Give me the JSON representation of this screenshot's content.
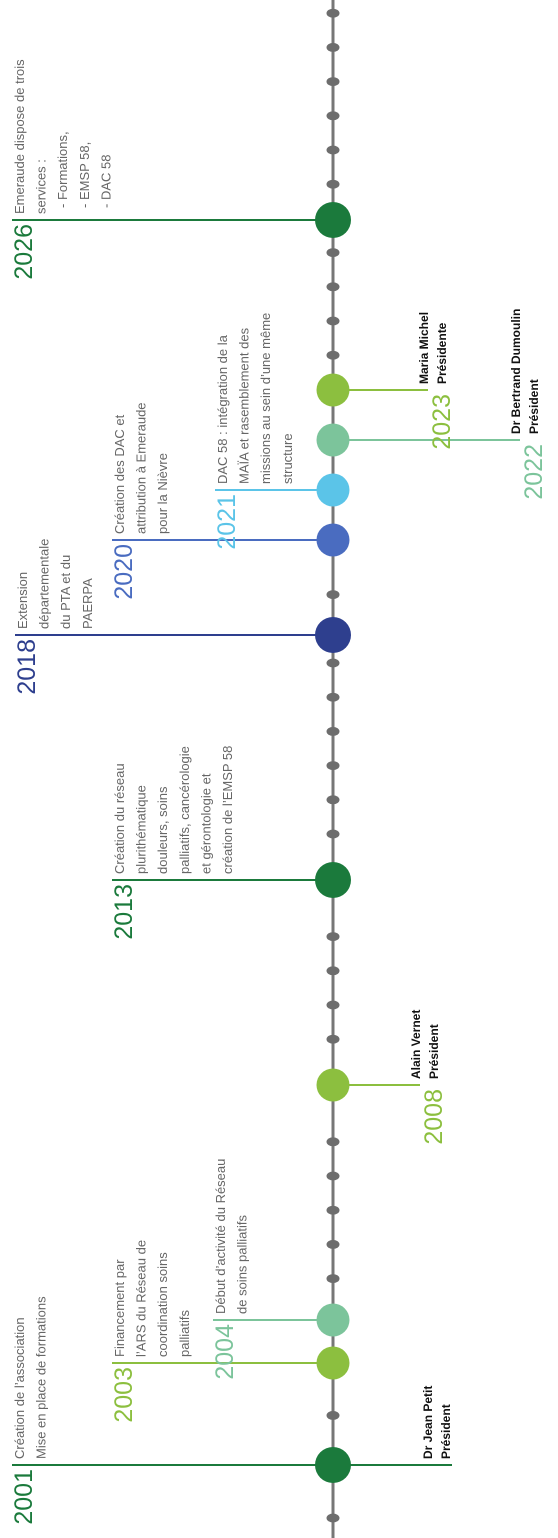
{
  "milestones": [
    {
      "year": "2001",
      "description": [
        "Création de l’association",
        "Mise en place de formations"
      ]
    },
    {
      "year": "2003",
      "description": [
        "Financement par",
        "l’ARS du Réseau de",
        "coordination soins",
        "palliatifs"
      ]
    },
    {
      "year": "2004",
      "description": [
        "Début d’activité du Réseau",
        "de soins palliatifs"
      ]
    },
    {
      "year": "2013",
      "description": [
        "Création du réseau",
        "plurithématique",
        "douleurs, soins",
        "palliatifs, cancérologie",
        "et gérontologie et",
        "création de l’EMSP 58"
      ]
    },
    {
      "year": "2018",
      "description": [
        "Extension",
        "départementale",
        "du PTA et du",
        "PAERPA"
      ]
    },
    {
      "year": "2020",
      "description": [
        "Création des DAC et",
        "attribution à Emeraude",
        "pour la Nièvre"
      ]
    },
    {
      "year": "2021",
      "description": [
        "DAC 58 : intégration de la",
        "MAÏA et rasemblement des",
        "missions au sein d’une même",
        "structure"
      ]
    },
    {
      "year": "2026",
      "description": [
        "Emeraude dispose de trois",
        "services :",
        "- Formations,",
        "- EMSP 58,",
        "- DAC 58"
      ]
    }
  ],
  "presidents": [
    {
      "name": "Dr Jean Petit",
      "title": "Président"
    },
    {
      "year": "2008",
      "name": "Alain Vernet",
      "title": "Président"
    },
    {
      "year": "2022",
      "name": "Dr Bertrand Dumoulin",
      "title": "Président"
    },
    {
      "year": "2023",
      "name": "Maria Michel",
      "title": "Présidente"
    }
  ]
}
